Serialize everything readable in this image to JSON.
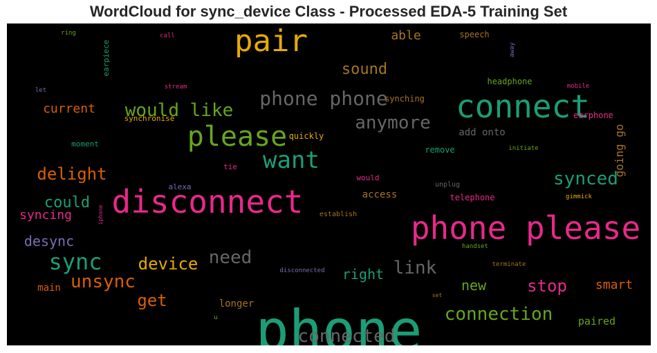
{
  "chart_data": {
    "type": "wordcloud",
    "title": "WordCloud for sync_device Class - Processed EDA-5 Training Set",
    "words": [
      {
        "text": "phone",
        "color": "#1b9e77"
      },
      {
        "text": "phone please",
        "color": "#e7298a"
      },
      {
        "text": "disconnect",
        "color": "#e7298a"
      },
      {
        "text": "connect",
        "color": "#1b9e77"
      },
      {
        "text": "pair",
        "color": "#e6ab02"
      },
      {
        "text": "please",
        "color": "#66a61e"
      },
      {
        "text": "want",
        "color": "#1b9e77"
      },
      {
        "text": "sync",
        "color": "#1b9e77"
      },
      {
        "text": "phone phone",
        "color": "#666666"
      },
      {
        "text": "would like",
        "color": "#66a61e"
      },
      {
        "text": "anymore",
        "color": "#666666"
      },
      {
        "text": "connection",
        "color": "#66a61e"
      },
      {
        "text": "connected",
        "color": "#666666"
      },
      {
        "text": "unsync",
        "color": "#d95f02"
      },
      {
        "text": "synced",
        "color": "#1b9e77"
      },
      {
        "text": "delight",
        "color": "#d95f02"
      },
      {
        "text": "link",
        "color": "#666666"
      },
      {
        "text": "need",
        "color": "#666666"
      },
      {
        "text": "device",
        "color": "#e6ab02"
      },
      {
        "text": "stop",
        "color": "#e7298a"
      },
      {
        "text": "get",
        "color": "#d95f02"
      },
      {
        "text": "could",
        "color": "#1b9e77"
      },
      {
        "text": "sound",
        "color": "#a6761d"
      },
      {
        "text": "desync",
        "color": "#7570b3"
      },
      {
        "text": "right",
        "color": "#1b9e77"
      },
      {
        "text": "new",
        "color": "#66a61e"
      },
      {
        "text": "current",
        "color": "#d95f02"
      },
      {
        "text": "able",
        "color": "#a6761d"
      },
      {
        "text": "syncing",
        "color": "#e7298a"
      },
      {
        "text": "smart",
        "color": "#d95f02"
      },
      {
        "text": "going go",
        "color": "#a6761d"
      },
      {
        "text": "paired",
        "color": "#66a61e"
      },
      {
        "text": "longer",
        "color": "#a6761d"
      },
      {
        "text": "main",
        "color": "#d95f02"
      },
      {
        "text": "access",
        "color": "#a6761d"
      },
      {
        "text": "add onto",
        "color": "#666666"
      },
      {
        "text": "telephone",
        "color": "#e7298a"
      },
      {
        "text": "headphone",
        "color": "#66a61e"
      },
      {
        "text": "earphone",
        "color": "#e7298a"
      },
      {
        "text": "synching",
        "color": "#a6761d"
      },
      {
        "text": "speech",
        "color": "#a6761d"
      },
      {
        "text": "quickly",
        "color": "#e6ab02"
      },
      {
        "text": "remove",
        "color": "#1b9e77"
      },
      {
        "text": "would",
        "color": "#e7298a"
      },
      {
        "text": "moment",
        "color": "#1b9e77"
      },
      {
        "text": "synchronise",
        "color": "#e6ab02"
      },
      {
        "text": "earpiece",
        "color": "#1b9e77"
      },
      {
        "text": "alexa",
        "color": "#7570b3"
      },
      {
        "text": "tie",
        "color": "#e7298a"
      },
      {
        "text": "unplug",
        "color": "#666666"
      },
      {
        "text": "establish",
        "color": "#a6761d"
      },
      {
        "text": "disconnected",
        "color": "#7570b3"
      },
      {
        "text": "handset",
        "color": "#66a61e"
      },
      {
        "text": "terminate",
        "color": "#a6761d"
      },
      {
        "text": "initiate",
        "color": "#66a61e"
      },
      {
        "text": "mobile",
        "color": "#e7298a"
      },
      {
        "text": "gimmick",
        "color": "#e6ab02"
      },
      {
        "text": "away",
        "color": "#7570b3"
      },
      {
        "text": "call",
        "color": "#e7298a"
      },
      {
        "text": "ring",
        "color": "#66a61e"
      },
      {
        "text": "let",
        "color": "#7570b3"
      },
      {
        "text": "stream",
        "color": "#e7298a"
      },
      {
        "text": "iphone",
        "color": "#e7298a"
      },
      {
        "text": "set",
        "color": "#a6761d"
      },
      {
        "text": "u",
        "color": "#66a61e"
      }
    ]
  }
}
